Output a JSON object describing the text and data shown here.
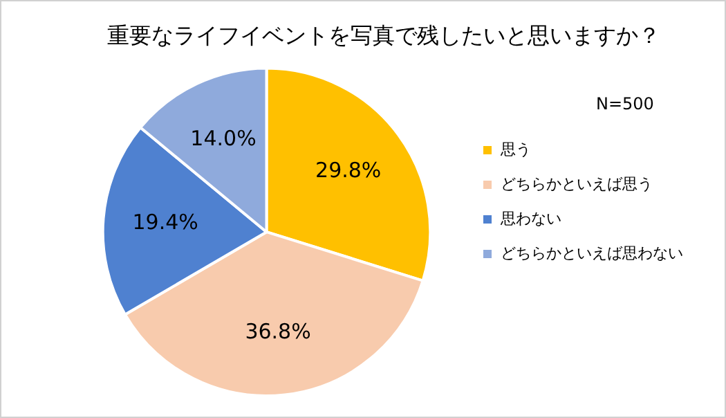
{
  "chart_data": {
    "type": "pie",
    "title": "重要なライフイベントを写真で残したいと思いますか？",
    "categories": [
      "思う",
      "どちらかといえば思う",
      "思わない",
      "どちらかといえば思わない"
    ],
    "values": [
      29.8,
      36.8,
      19.4,
      14.0
    ],
    "value_labels": [
      "29.8%",
      "36.8%",
      "19.4%",
      "14.0%"
    ],
    "colors": [
      "#ffc000",
      "#f8cbad",
      "#4f81d0",
      "#8faadc"
    ],
    "annotations": [
      "N=500"
    ],
    "legend": "right"
  }
}
